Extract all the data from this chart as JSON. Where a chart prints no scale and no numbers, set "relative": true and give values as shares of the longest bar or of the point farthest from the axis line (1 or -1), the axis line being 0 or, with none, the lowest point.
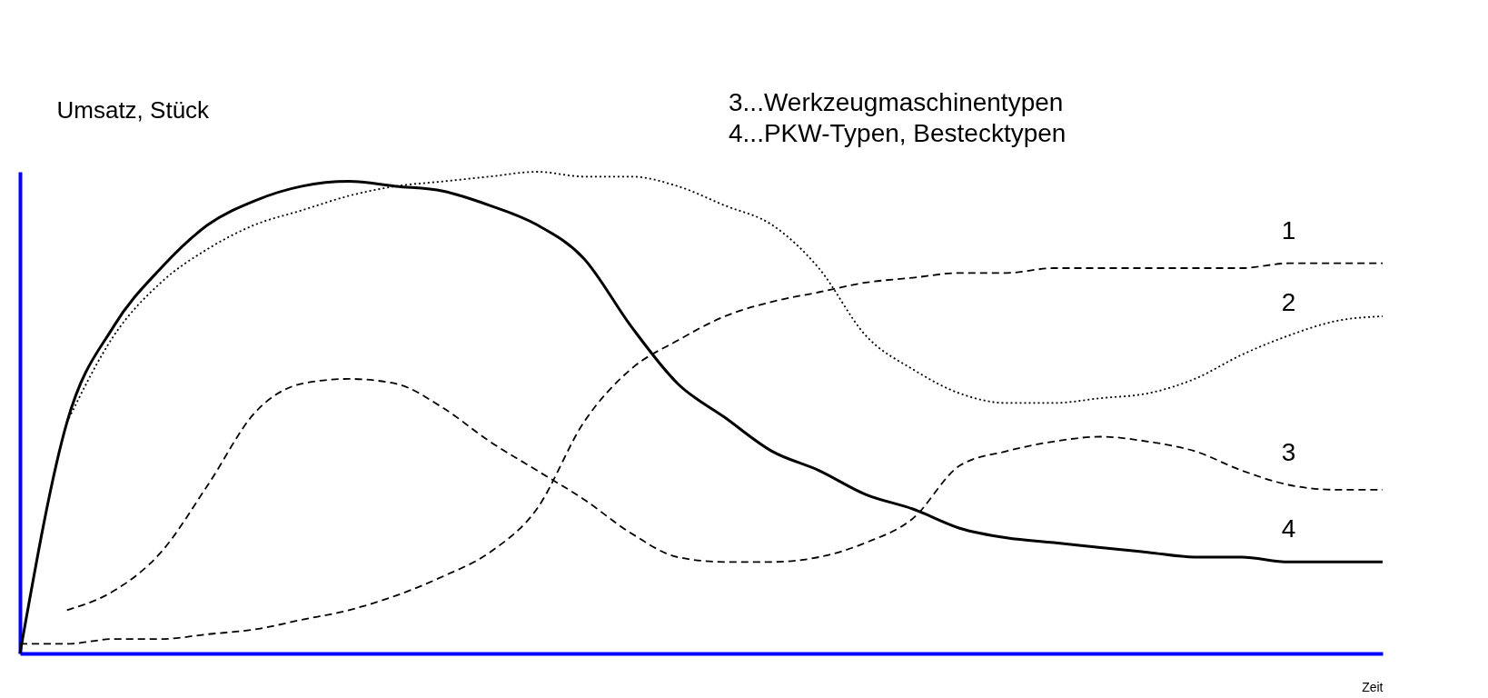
{
  "chart_data": {
    "type": "line",
    "relative": true,
    "ylabel": "Umsatz, Stück",
    "xlabel": "Zeit",
    "grid": false,
    "annotations": [
      "3...Werkzeugmaschinentypen",
      "4...PKW-Typen, Bestecktypen"
    ],
    "categories": [
      null,
      null,
      null,
      null,
      null,
      null,
      null,
      null,
      null,
      null,
      null,
      null,
      null,
      null,
      null,
      null,
      null,
      null,
      null,
      null,
      null,
      null,
      null,
      null,
      null,
      null,
      null,
      null,
      null,
      null
    ],
    "series": [
      {
        "name": "1",
        "color": "#000000",
        "line_style": "dashed",
        "values": [
          0.02,
          0.02,
          0.03,
          0.03,
          0.04,
          0.05,
          0.07,
          0.09,
          0.12,
          0.16,
          0.21,
          0.3,
          0.48,
          0.59,
          0.65,
          0.7,
          0.73,
          0.75,
          0.77,
          0.78,
          0.79,
          0.79,
          0.8,
          0.8,
          0.8,
          0.8,
          0.8,
          0.81,
          0.81,
          0.81
        ]
      },
      {
        "name": "2",
        "color": "#000000",
        "line_style": "dotted",
        "values": [
          null,
          0.48,
          0.66,
          0.77,
          0.84,
          0.89,
          0.92,
          0.95,
          0.97,
          0.98,
          0.99,
          1.0,
          0.99,
          0.99,
          0.97,
          0.93,
          0.89,
          0.8,
          0.66,
          0.59,
          0.54,
          0.52,
          0.52,
          0.53,
          0.54,
          0.57,
          0.62,
          0.66,
          0.69,
          0.7
        ]
      },
      {
        "name": "3",
        "color": "#000000",
        "line_style": "dashed",
        "values": [
          null,
          0.09,
          0.13,
          0.21,
          0.35,
          0.5,
          0.56,
          0.57,
          0.56,
          0.51,
          0.44,
          0.38,
          0.32,
          0.25,
          0.2,
          0.19,
          0.19,
          0.2,
          0.23,
          0.28,
          0.39,
          0.42,
          0.44,
          0.45,
          0.44,
          0.42,
          0.38,
          0.35,
          0.34,
          0.34
        ]
      },
      {
        "name": "4",
        "color": "#000000",
        "line_style": "solid",
        "values": [
          0,
          0.48,
          0.68,
          0.8,
          0.89,
          0.94,
          0.97,
          0.98,
          0.97,
          0.96,
          0.93,
          0.89,
          0.82,
          0.68,
          0.56,
          0.49,
          0.42,
          0.38,
          0.33,
          0.3,
          0.26,
          0.24,
          0.23,
          0.22,
          0.21,
          0.2,
          0.2,
          0.19,
          0.19,
          0.19
        ]
      }
    ]
  }
}
